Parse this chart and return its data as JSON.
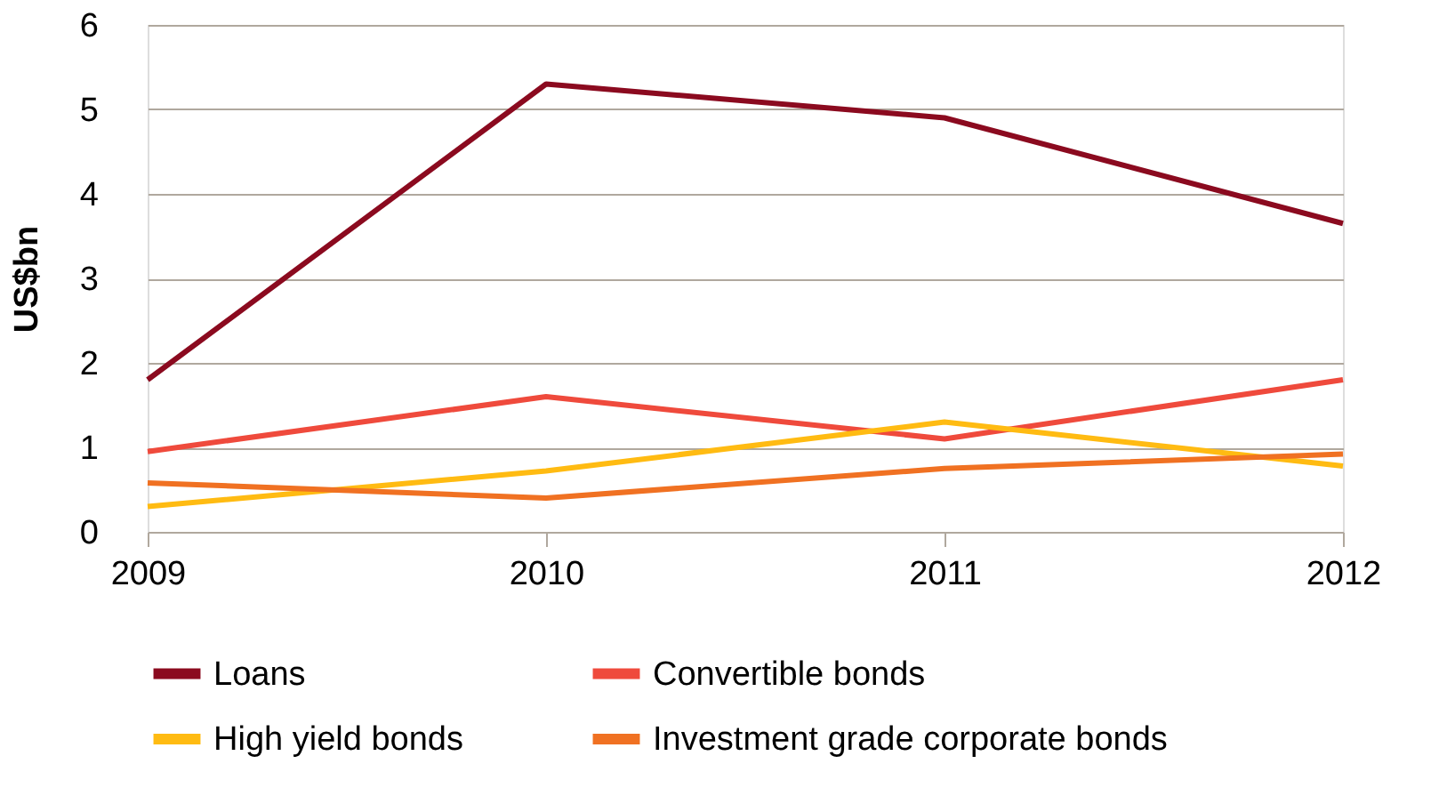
{
  "chart_data": {
    "type": "line",
    "ylabel": "US$bn",
    "categories": [
      "2009",
      "2010",
      "2011",
      "2012"
    ],
    "series": [
      {
        "name": "Loans",
        "color": "#8b0a1f",
        "values": [
          1.8,
          5.3,
          4.9,
          3.65
        ]
      },
      {
        "name": "Convertible bonds",
        "color": "#ef4a3c",
        "values": [
          0.95,
          1.6,
          1.1,
          1.8
        ]
      },
      {
        "name": "High yield bonds",
        "color": "#ffbb12",
        "values": [
          0.3,
          0.72,
          1.3,
          0.78
        ]
      },
      {
        "name": "Investment grade corporate bonds",
        "color": "#f07122",
        "values": [
          0.58,
          0.4,
          0.75,
          0.92
        ]
      }
    ],
    "ylim": [
      0,
      6
    ],
    "yticks": [
      0,
      1,
      2,
      3,
      4,
      5,
      6
    ],
    "grid": "y",
    "legend": "bottom",
    "marker": "none",
    "line_style": "solid"
  }
}
